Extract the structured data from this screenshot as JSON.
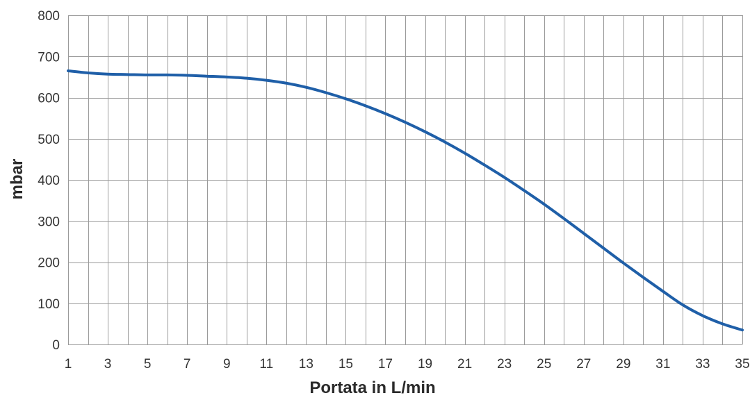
{
  "chart_data": {
    "type": "line",
    "title": "",
    "xlabel": "Portata in L/min",
    "ylabel": "mbar",
    "xlim": [
      1,
      35
    ],
    "ylim": [
      0,
      800
    ],
    "x_ticks": [
      1,
      3,
      5,
      7,
      9,
      11,
      13,
      15,
      17,
      19,
      21,
      23,
      25,
      27,
      29,
      31,
      33,
      35
    ],
    "x_tick_labels": [
      "1",
      "3",
      "5",
      "7",
      "9",
      "11",
      "13",
      "15",
      "17",
      "19",
      "21",
      "23",
      "25",
      "27",
      "29",
      "31",
      "33",
      "35"
    ],
    "y_ticks": [
      0,
      100,
      200,
      300,
      400,
      500,
      600,
      700,
      800
    ],
    "y_tick_labels": [
      "0",
      "100",
      "200",
      "300",
      "400",
      "500",
      "600",
      "700",
      "800"
    ],
    "grid": true,
    "grid_x_step": 1,
    "legend": "none",
    "series": [
      {
        "color": "#1f5fa8",
        "x": [
          1,
          2,
          3,
          4,
          5,
          6,
          7,
          8,
          9,
          10,
          11,
          12,
          13,
          14,
          15,
          16,
          17,
          18,
          19,
          20,
          21,
          22,
          23,
          24,
          25,
          26,
          27,
          28,
          29,
          30,
          31,
          32,
          33,
          34,
          35
        ],
        "y": [
          665,
          660,
          657,
          656,
          655,
          655,
          654,
          652,
          650,
          647,
          642,
          635,
          625,
          612,
          597,
          580,
          561,
          540,
          517,
          492,
          465,
          436,
          406,
          374,
          341,
          306,
          270,
          234,
          198,
          163,
          129,
          96,
          70,
          50,
          35
        ]
      }
    ]
  }
}
